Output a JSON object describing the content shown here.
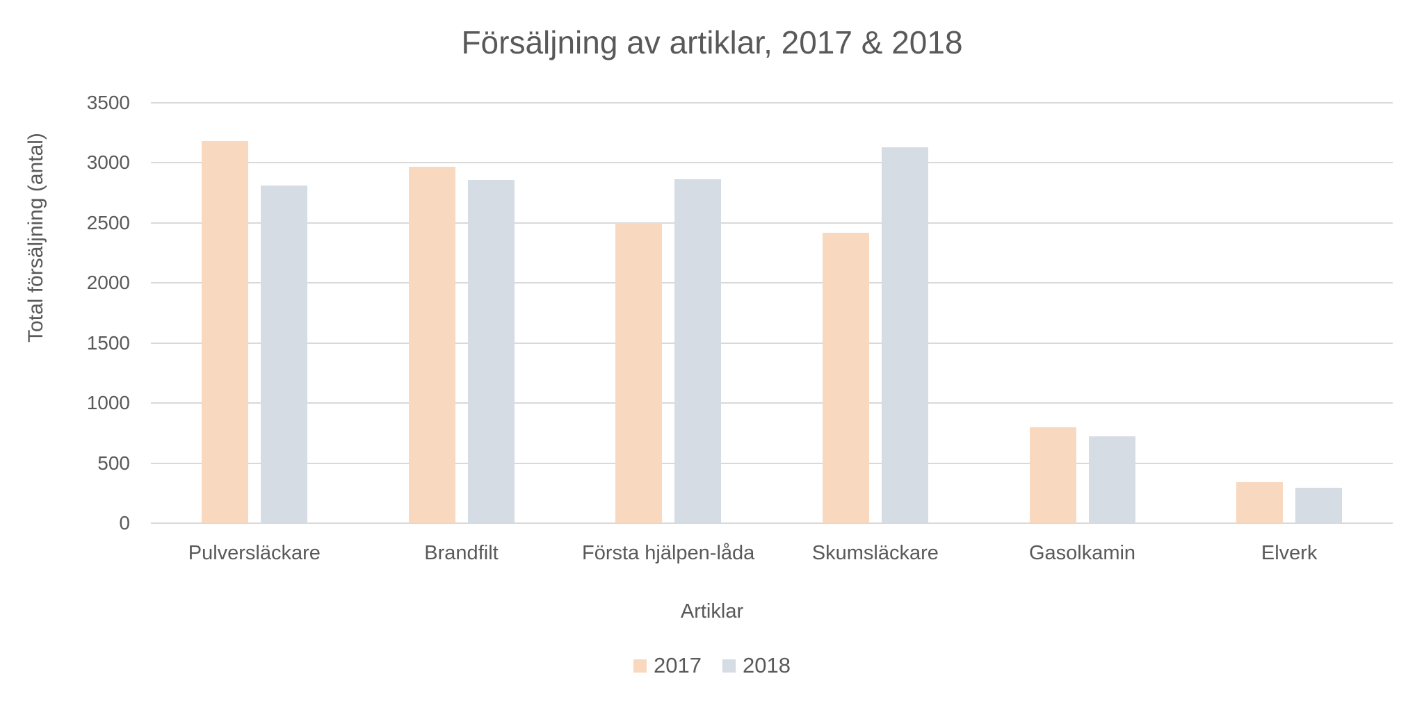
{
  "chart_data": {
    "type": "bar",
    "title": "Försäljning av artiklar, 2017 & 2018",
    "xlabel": "Artiklar",
    "ylabel": "Total försäljning (antal)",
    "categories": [
      "Pulversläckare",
      "Brandfilt",
      "Första hjälpen-låda",
      "Skumsläckare",
      "Gasolkamin",
      "Elverk"
    ],
    "series": [
      {
        "name": "2017",
        "color": "#F8D8BF",
        "values": [
          3180,
          2970,
          2500,
          2420,
          800,
          340
        ]
      },
      {
        "name": "2018",
        "color": "#D6DCE4",
        "values": [
          2810,
          2860,
          2865,
          3130,
          725,
          295
        ]
      }
    ],
    "ylim": [
      0,
      3500
    ],
    "yticks": [
      0,
      500,
      1000,
      1500,
      2000,
      2500,
      3000,
      3500
    ],
    "grid": true,
    "legend_position": "bottom"
  }
}
